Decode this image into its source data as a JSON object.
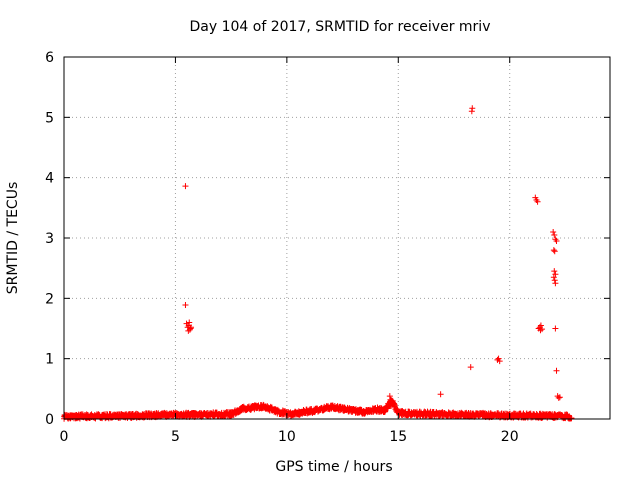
{
  "chart_data": {
    "type": "scatter",
    "title": "Day 104 of 2017, SRMTID for receiver mriv",
    "xlabel": "GPS time / hours",
    "ylabel": "SRMTID / TECUs",
    "xlim": [
      0,
      24.5
    ],
    "ylim": [
      0,
      6
    ],
    "xticks": [
      0,
      5,
      10,
      15,
      20
    ],
    "yticks": [
      0,
      1,
      2,
      3,
      4,
      5,
      6
    ],
    "grid": true,
    "marker": "+",
    "colors": {
      "series": "#ff0000",
      "axes": "#000000",
      "grid": "#a0a0a0"
    },
    "baseline_profile": [
      [
        0.0,
        0.04
      ],
      [
        3.0,
        0.05
      ],
      [
        4.5,
        0.07
      ],
      [
        6.0,
        0.07
      ],
      [
        7.5,
        0.08
      ],
      [
        8.0,
        0.17
      ],
      [
        9.0,
        0.21
      ],
      [
        9.6,
        0.12
      ],
      [
        10.2,
        0.08
      ],
      [
        10.8,
        0.12
      ],
      [
        11.3,
        0.14
      ],
      [
        12.0,
        0.2
      ],
      [
        13.0,
        0.14
      ],
      [
        13.5,
        0.12
      ],
      [
        14.0,
        0.16
      ],
      [
        14.4,
        0.14
      ],
      [
        14.7,
        0.3
      ],
      [
        15.0,
        0.1
      ],
      [
        16.0,
        0.09
      ],
      [
        18.0,
        0.07
      ],
      [
        20.0,
        0.06
      ],
      [
        22.0,
        0.05
      ],
      [
        22.8,
        0.04
      ]
    ],
    "scatter_points": [
      [
        5.45,
        3.86
      ],
      [
        5.45,
        1.89
      ],
      [
        5.5,
        1.58
      ],
      [
        5.55,
        1.52
      ],
      [
        5.6,
        1.55
      ],
      [
        5.65,
        1.48
      ],
      [
        5.7,
        1.52
      ],
      [
        5.58,
        1.46
      ],
      [
        5.62,
        1.6
      ],
      [
        5.68,
        1.5
      ],
      [
        14.62,
        0.38
      ],
      [
        14.65,
        0.32
      ],
      [
        14.7,
        0.28
      ],
      [
        14.75,
        0.3
      ],
      [
        14.8,
        0.25
      ],
      [
        14.68,
        0.22
      ],
      [
        14.85,
        0.2
      ],
      [
        16.9,
        0.41
      ],
      [
        18.25,
        0.86
      ],
      [
        18.3,
        5.1
      ],
      [
        18.32,
        5.15
      ],
      [
        19.45,
        0.98
      ],
      [
        19.5,
        1.0
      ],
      [
        19.55,
        0.96
      ],
      [
        21.15,
        3.67
      ],
      [
        21.2,
        3.63
      ],
      [
        21.25,
        3.6
      ],
      [
        21.3,
        1.5
      ],
      [
        21.35,
        1.52
      ],
      [
        21.4,
        1.55
      ],
      [
        21.45,
        1.49
      ],
      [
        21.38,
        1.47
      ],
      [
        21.95,
        3.1
      ],
      [
        22.0,
        3.05
      ],
      [
        22.05,
        2.98
      ],
      [
        22.1,
        2.95
      ],
      [
        21.98,
        2.8
      ],
      [
        22.02,
        2.78
      ],
      [
        22.0,
        2.45
      ],
      [
        22.05,
        2.4
      ],
      [
        21.98,
        2.35
      ],
      [
        22.02,
        2.3
      ],
      [
        22.05,
        2.25
      ],
      [
        22.05,
        1.5
      ],
      [
        22.1,
        0.8
      ],
      [
        22.15,
        0.38
      ],
      [
        22.2,
        0.35
      ],
      [
        22.25,
        0.36
      ]
    ]
  }
}
